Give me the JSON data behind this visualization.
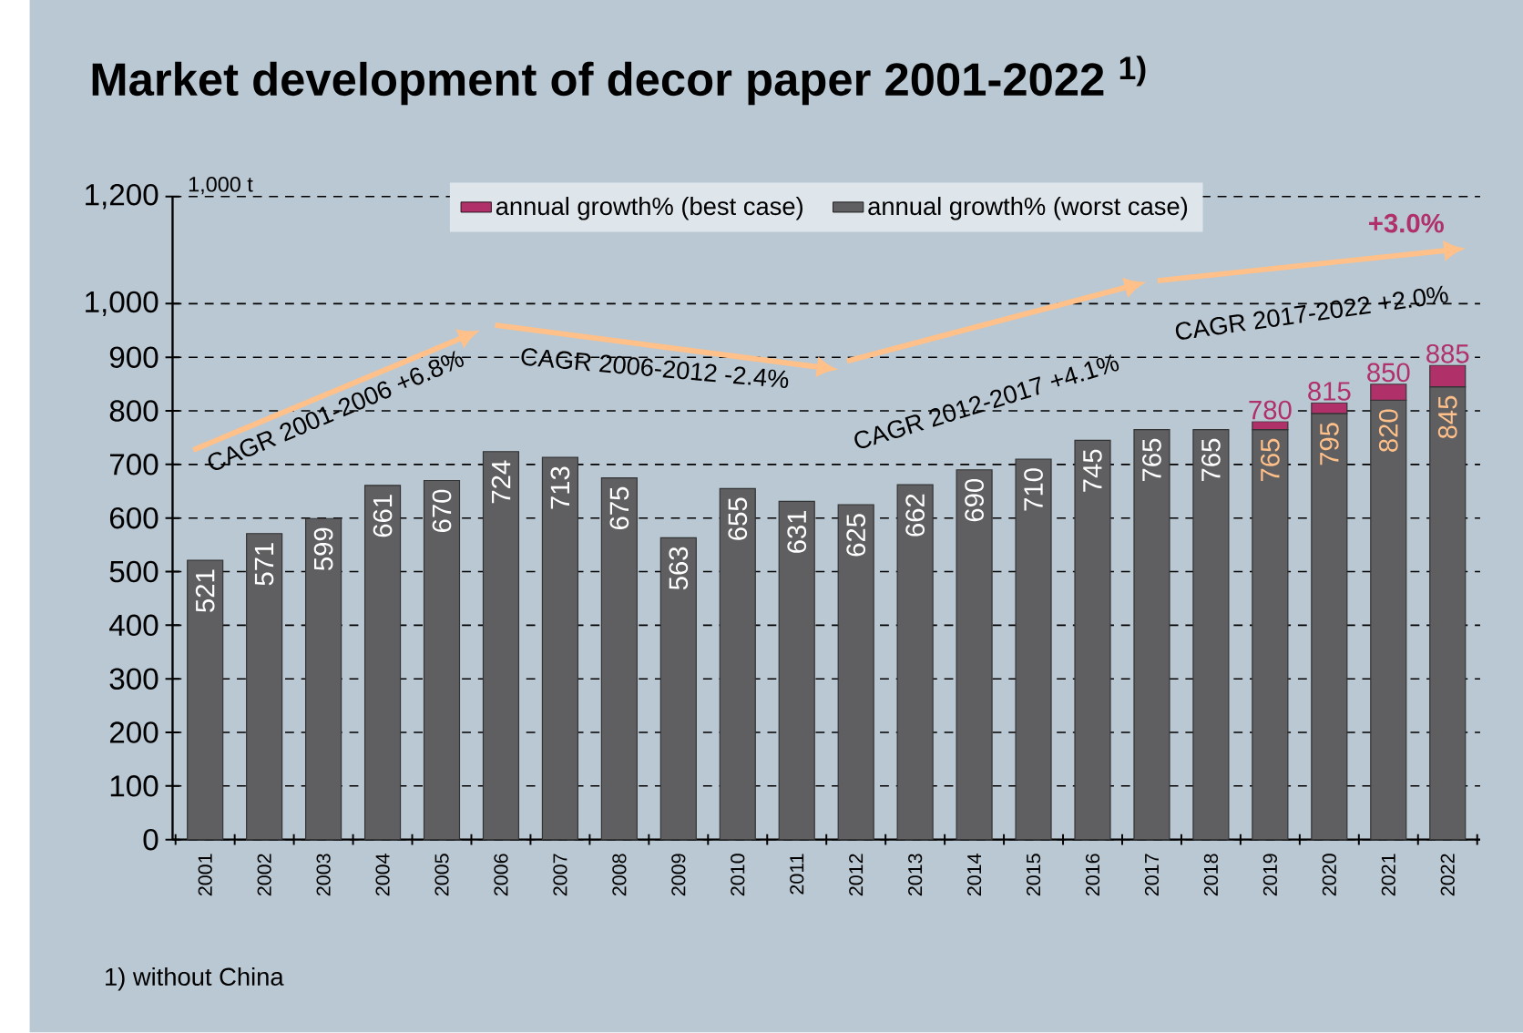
{
  "chart_data": {
    "type": "bar",
    "title": "Market development of decor paper 2001-2022 $^{1)}$",
    "ylabel": "1,000 t",
    "categories": [
      "2001",
      "2002",
      "2003",
      "2004",
      "2005",
      "2006",
      "2007",
      "2008",
      "2009",
      "2010",
      "2011",
      "2012",
      "2013",
      "2014",
      "2015",
      "2016",
      "2017",
      "2018",
      "2019",
      "2020",
      "2021",
      "2022"
    ],
    "series": [
      {
        "color": "#5f5e60",
        "values": [
          521,
          571,
          599,
          661,
          670,
          724,
          713,
          675,
          563,
          655,
          631,
          625,
          662,
          690,
          710,
          745,
          765,
          765,
          null,
          null,
          null,
          null
        ],
        "value_labels": [
          "521",
          "571",
          "599",
          "661",
          "670",
          "724",
          "713",
          "675",
          "563",
          "655",
          "631",
          "625",
          "662",
          "690",
          "710",
          "745",
          "765",
          "765",
          null,
          null,
          null,
          null
        ]
      },
      {
        "name": "annual growth% (worst case)",
        "color": "#5f5e60",
        "values": [
          null,
          null,
          null,
          null,
          null,
          null,
          null,
          null,
          null,
          null,
          null,
          null,
          null,
          null,
          null,
          null,
          null,
          null,
          765,
          795,
          820,
          845
        ],
        "value_labels": [
          null,
          null,
          null,
          null,
          null,
          null,
          null,
          null,
          null,
          null,
          null,
          null,
          null,
          null,
          null,
          null,
          null,
          null,
          "765",
          "795",
          "820",
          "845"
        ]
      },
      {
        "name": "annual growth% (best case)",
        "color": "#b0306a",
        "values": [
          null,
          null,
          null,
          null,
          null,
          null,
          null,
          null,
          null,
          null,
          null,
          null,
          null,
          null,
          null,
          null,
          null,
          null,
          15,
          20,
          30,
          40
        ]
      }
    ],
    "stacked": true,
    "ylim": [
      0,
      1200
    ],
    "yticks": [
      0,
      100,
      200,
      300,
      400,
      500,
      600,
      700,
      800,
      900,
      {
        "value": 1000,
        "label": "1,000"
      },
      {
        "value": 1200,
        "label": "1,200"
      }
    ],
    "grid": "y",
    "line_style": "dashed",
    "legend": "top",
    "annotations": [
      "CAGR 2001-2006 +6.8%",
      "CAGR 2006-2012 -2.4%",
      "CAGR 2012-2017 +4.1%",
      "CAGR 2017-2022 +2.0%",
      "+3.0%",
      {
        "text": "780",
        "x": "2019",
        "y": 780
      },
      {
        "text": "815",
        "x": "2020",
        "y": 815
      },
      {
        "text": "850",
        "x": "2021",
        "y": 850
      },
      {
        "text": "885",
        "x": "2022",
        "y": 885
      },
      "1) without China"
    ]
  }
}
